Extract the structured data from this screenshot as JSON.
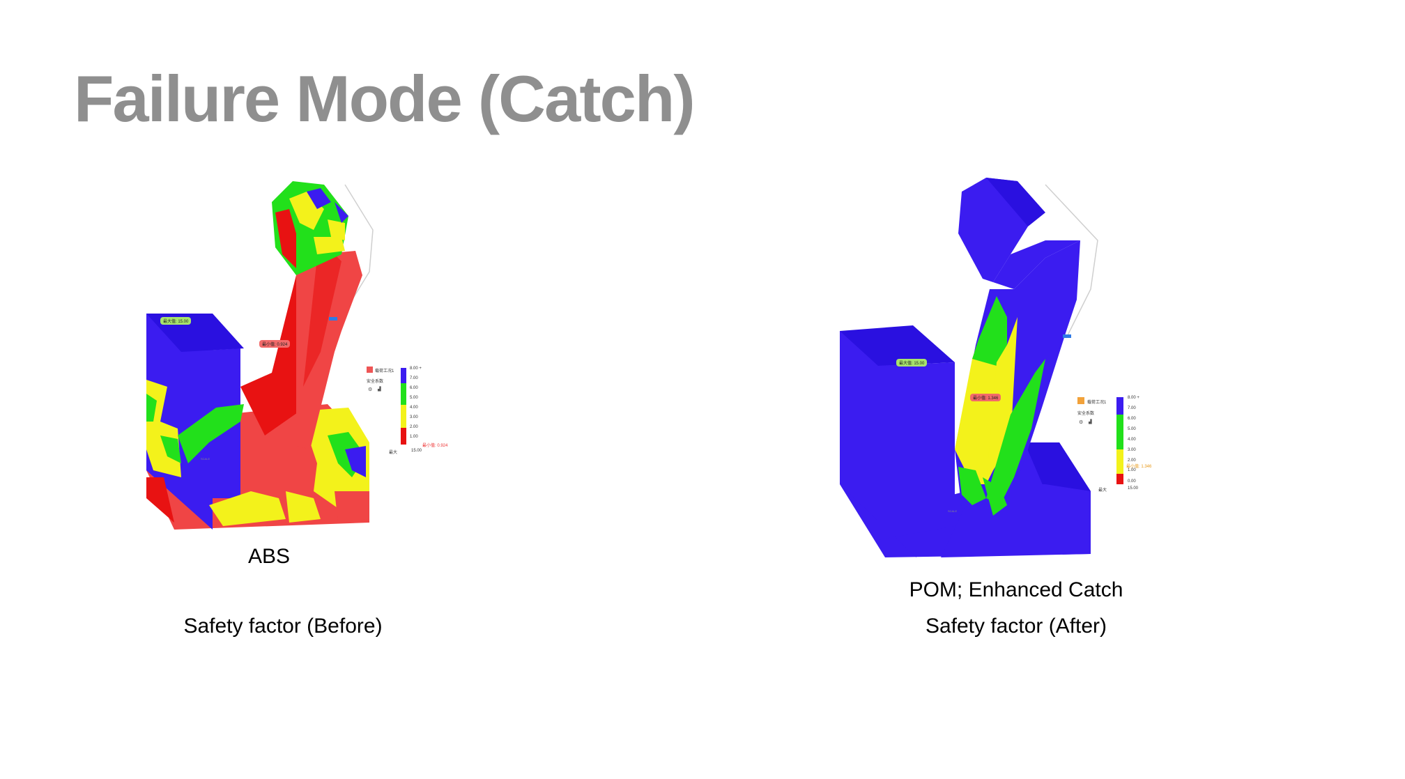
{
  "slide": {
    "title": "Failure Mode (Catch)"
  },
  "left": {
    "material": "ABS",
    "caption": "Safety factor (Before)",
    "max_tag": "最大值: 15.00",
    "min_tag": "最小值: 0.924",
    "legend": {
      "case_label": "载荷工况1",
      "result_label": "安全系数",
      "ticks": [
        "8.00 +",
        "7.00",
        "6.00",
        "5.00",
        "4.00",
        "3.00",
        "2.00",
        "1.00"
      ],
      "min_label": "最小值: 0.924",
      "max_key": "最大",
      "max_value": "15.00"
    }
  },
  "right": {
    "material": "POM; Enhanced Catch",
    "caption": "Safety factor (After)",
    "max_tag": "最大值: 15.00",
    "min_tag": "最小值: 1.346",
    "legend": {
      "case_label": "载荷工况1",
      "result_label": "安全系数",
      "ticks": [
        "8.00 +",
        "7.00",
        "6.00",
        "5.00",
        "4.00",
        "3.00",
        "2.00",
        "1.00",
        "0.00"
      ],
      "min_label": "最小值: 1.346",
      "max_key": "最大",
      "max_value": "15.00"
    }
  },
  "colors": {
    "title": "#8f8f8f",
    "blue": "#3b1cf0",
    "green": "#22e01b",
    "yellow": "#f3f21b",
    "red": "#f23a3a",
    "red_dark": "#e81212"
  }
}
